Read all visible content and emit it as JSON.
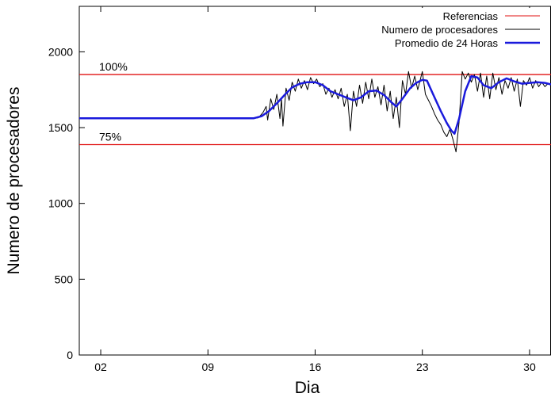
{
  "chart_data": {
    "type": "line",
    "title": "",
    "xlabel": "Dia",
    "ylabel": "Numero de procesadores",
    "xlim": [
      0.6,
      31.4
    ],
    "ylim": [
      0,
      2300
    ],
    "x_ticks": [
      {
        "value": 2,
        "label": "02"
      },
      {
        "value": 9,
        "label": "09"
      },
      {
        "value": 16,
        "label": "16"
      },
      {
        "value": 23,
        "label": "23"
      },
      {
        "value": 30,
        "label": "30"
      }
    ],
    "y_ticks": [
      {
        "value": 0,
        "label": "0"
      },
      {
        "value": 500,
        "label": "500"
      },
      {
        "value": 1000,
        "label": "1000"
      },
      {
        "value": 1500,
        "label": "1500"
      },
      {
        "value": 2000,
        "label": "2000"
      }
    ],
    "grid": false,
    "legend": {
      "position": "top-right",
      "entries": [
        {
          "label": "Referencias",
          "color": "#e01010",
          "width": 1
        },
        {
          "label": "Numero de procesadores",
          "color": "#000000",
          "width": 1
        },
        {
          "label": "Promedio de 24 Horas",
          "color": "#1a1adc",
          "width": 2.5
        }
      ]
    },
    "references": [
      {
        "name": "Referencias",
        "label": "100%",
        "value": 1850,
        "color": "#e01010"
      },
      {
        "name": "Referencias",
        "label": "75%",
        "value": 1388,
        "color": "#e01010"
      }
    ],
    "series": [
      {
        "name": "Numero de procesadores",
        "color": "#000000",
        "width": 1,
        "points": [
          [
            0.6,
            1562
          ],
          [
            12.0,
            1562
          ],
          [
            12.3,
            1565
          ],
          [
            12.6,
            1600
          ],
          [
            12.8,
            1640
          ],
          [
            12.9,
            1550
          ],
          [
            13.1,
            1690
          ],
          [
            13.3,
            1620
          ],
          [
            13.5,
            1720
          ],
          [
            13.7,
            1560
          ],
          [
            13.8,
            1690
          ],
          [
            13.9,
            1510
          ],
          [
            14.1,
            1760
          ],
          [
            14.3,
            1680
          ],
          [
            14.5,
            1800
          ],
          [
            14.7,
            1740
          ],
          [
            14.9,
            1820
          ],
          [
            15.1,
            1760
          ],
          [
            15.3,
            1810
          ],
          [
            15.5,
            1750
          ],
          [
            15.7,
            1830
          ],
          [
            15.9,
            1790
          ],
          [
            16.1,
            1820
          ],
          [
            16.3,
            1770
          ],
          [
            16.5,
            1790
          ],
          [
            16.7,
            1720
          ],
          [
            16.9,
            1760
          ],
          [
            17.1,
            1700
          ],
          [
            17.3,
            1750
          ],
          [
            17.5,
            1690
          ],
          [
            17.7,
            1760
          ],
          [
            17.9,
            1640
          ],
          [
            18.1,
            1720
          ],
          [
            18.3,
            1480
          ],
          [
            18.5,
            1740
          ],
          [
            18.7,
            1640
          ],
          [
            18.9,
            1780
          ],
          [
            19.1,
            1660
          ],
          [
            19.3,
            1800
          ],
          [
            19.5,
            1690
          ],
          [
            19.7,
            1820
          ],
          [
            19.9,
            1700
          ],
          [
            20.1,
            1770
          ],
          [
            20.3,
            1650
          ],
          [
            20.5,
            1780
          ],
          [
            20.7,
            1610
          ],
          [
            20.9,
            1740
          ],
          [
            21.1,
            1560
          ],
          [
            21.3,
            1700
          ],
          [
            21.5,
            1500
          ],
          [
            21.7,
            1810
          ],
          [
            21.9,
            1720
          ],
          [
            22.1,
            1870
          ],
          [
            22.3,
            1760
          ],
          [
            22.5,
            1840
          ],
          [
            22.7,
            1750
          ],
          [
            22.9,
            1830
          ],
          [
            23.0,
            1870
          ],
          [
            23.2,
            1720
          ],
          [
            23.4,
            1680
          ],
          [
            23.6,
            1640
          ],
          [
            23.8,
            1590
          ],
          [
            24.0,
            1550
          ],
          [
            24.2,
            1520
          ],
          [
            24.4,
            1470
          ],
          [
            24.6,
            1440
          ],
          [
            24.8,
            1490
          ],
          [
            25.0,
            1420
          ],
          [
            25.2,
            1340
          ],
          [
            25.4,
            1540
          ],
          [
            25.6,
            1870
          ],
          [
            25.8,
            1820
          ],
          [
            26.0,
            1860
          ],
          [
            26.2,
            1800
          ],
          [
            26.4,
            1850
          ],
          [
            26.6,
            1740
          ],
          [
            26.8,
            1860
          ],
          [
            27.0,
            1700
          ],
          [
            27.2,
            1840
          ],
          [
            27.4,
            1690
          ],
          [
            27.6,
            1860
          ],
          [
            27.8,
            1750
          ],
          [
            28.0,
            1830
          ],
          [
            28.2,
            1720
          ],
          [
            28.4,
            1810
          ],
          [
            28.6,
            1760
          ],
          [
            28.8,
            1830
          ],
          [
            29.0,
            1740
          ],
          [
            29.2,
            1820
          ],
          [
            29.4,
            1640
          ],
          [
            29.6,
            1810
          ],
          [
            29.8,
            1780
          ],
          [
            30.0,
            1830
          ],
          [
            30.2,
            1760
          ],
          [
            30.4,
            1810
          ],
          [
            30.6,
            1770
          ],
          [
            30.8,
            1800
          ],
          [
            31.0,
            1770
          ],
          [
            31.2,
            1790
          ],
          [
            31.4,
            1780
          ]
        ]
      },
      {
        "name": "Promedio de 24 Horas",
        "color": "#1a1adc",
        "width": 2.5,
        "points": [
          [
            0.6,
            1562
          ],
          [
            12.0,
            1562
          ],
          [
            12.5,
            1575
          ],
          [
            13.0,
            1610
          ],
          [
            13.5,
            1660
          ],
          [
            14.0,
            1715
          ],
          [
            14.5,
            1765
          ],
          [
            15.0,
            1790
          ],
          [
            15.5,
            1800
          ],
          [
            16.0,
            1800
          ],
          [
            16.5,
            1780
          ],
          [
            17.0,
            1740
          ],
          [
            17.5,
            1720
          ],
          [
            18.0,
            1700
          ],
          [
            18.5,
            1680
          ],
          [
            19.0,
            1700
          ],
          [
            19.5,
            1740
          ],
          [
            20.0,
            1745
          ],
          [
            20.5,
            1715
          ],
          [
            21.0,
            1665
          ],
          [
            21.3,
            1640
          ],
          [
            21.7,
            1690
          ],
          [
            22.2,
            1760
          ],
          [
            22.6,
            1795
          ],
          [
            23.0,
            1815
          ],
          [
            23.3,
            1810
          ],
          [
            23.7,
            1720
          ],
          [
            24.2,
            1610
          ],
          [
            24.6,
            1530
          ],
          [
            24.9,
            1480
          ],
          [
            25.1,
            1460
          ],
          [
            25.4,
            1560
          ],
          [
            25.8,
            1740
          ],
          [
            26.2,
            1840
          ],
          [
            26.6,
            1830
          ],
          [
            27.0,
            1780
          ],
          [
            27.5,
            1760
          ],
          [
            28.0,
            1800
          ],
          [
            28.5,
            1825
          ],
          [
            29.0,
            1805
          ],
          [
            29.5,
            1790
          ],
          [
            30.0,
            1795
          ],
          [
            30.5,
            1800
          ],
          [
            31.0,
            1795
          ],
          [
            31.4,
            1785
          ]
        ]
      }
    ]
  }
}
